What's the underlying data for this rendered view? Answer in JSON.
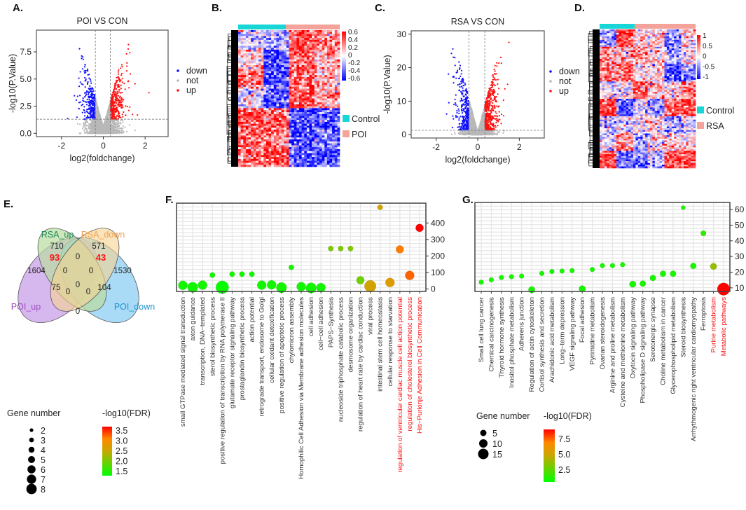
{
  "panels": {
    "A": "A.",
    "B": "B.",
    "C": "C.",
    "D": "D.",
    "E": "E.",
    "F": "F.",
    "G": "G."
  },
  "colors": {
    "down": "#1010ff",
    "not": "#b8b8b8",
    "up": "#ff1010",
    "control": "#18d6d6",
    "case": "#f4a39b",
    "heat_high": "#ff0000",
    "heat_low": "#0000ff",
    "fdr_low": "#00ff00",
    "fdr_high": "#ff0000"
  },
  "chart_data": [
    {
      "id": "A",
      "type": "scatter",
      "title": "POI  VS CON",
      "xlabel": "log2(foldchange)",
      "ylabel": "-log10(P.Value)",
      "xlim": [
        -3.2,
        3.1
      ],
      "ylim": [
        -0.3,
        9.5
      ],
      "xticks": [
        "-2",
        "0",
        "2"
      ],
      "xtick_values": [
        -2,
        0,
        2
      ],
      "yticks": [
        "0.0",
        "2.5",
        "5.0",
        "7.5"
      ],
      "ytick_values": [
        0,
        2.5,
        5,
        7.5
      ],
      "fc_threshold": [
        -0.38,
        0.34
      ],
      "p_threshold": 1.3,
      "legend": [
        "down",
        "not",
        "up"
      ],
      "legend_position": "right",
      "ymax_point": 8.6
    },
    {
      "id": "B",
      "type": "heatmap",
      "groups": [
        "Control",
        "POI"
      ],
      "scale_ticks": [
        "0.6",
        "0.4",
        "0.2",
        "0",
        "-0.2",
        "-0.4",
        "-0.6"
      ],
      "scale_range": [
        -0.6,
        0.6
      ]
    },
    {
      "id": "C",
      "type": "scatter",
      "title": "RSA  VS CON",
      "xlabel": "log2(foldchange)",
      "ylabel": "-log10(P.Value)",
      "xlim": [
        -3.2,
        3.2
      ],
      "ylim": [
        -1,
        31
      ],
      "xticks": [
        "-2",
        "0",
        "2"
      ],
      "xtick_values": [
        -2,
        0,
        2
      ],
      "yticks": [
        "0",
        "10",
        "20",
        "30"
      ],
      "ytick_values": [
        0,
        10,
        20,
        30
      ],
      "fc_threshold": [
        -0.42,
        0.34
      ],
      "p_threshold": 1.3,
      "legend": [
        "down",
        "not",
        "up"
      ],
      "legend_position": "right",
      "ymax_point": 29
    },
    {
      "id": "D",
      "type": "heatmap",
      "groups": [
        "Control",
        "RSA"
      ],
      "scale_ticks": [
        "1",
        "0.5",
        "0",
        "-0.5",
        "-1"
      ],
      "scale_range": [
        -1,
        1
      ]
    },
    {
      "id": "E",
      "type": "venn",
      "sets": [
        "RSA_up",
        "RSA_down",
        "POI_up",
        "POI_down"
      ],
      "regions": [
        {
          "label": "RSA_up only",
          "value": "710"
        },
        {
          "label": "RSA_down only",
          "value": "571"
        },
        {
          "label": "RSA_up∩POI_up",
          "value": "93",
          "highlight": true
        },
        {
          "label": "RSA_up∩RSA_down",
          "value": "0"
        },
        {
          "label": "RSA_down∩POI_down",
          "value": "43",
          "highlight": true
        },
        {
          "label": "POI_up only",
          "value": "1604"
        },
        {
          "label": "RSA_up∩RSA_down∩POI_up",
          "value": "0"
        },
        {
          "label": "RSA_up∩RSA_down∩POI_down",
          "value": "0"
        },
        {
          "label": "POI_down only",
          "value": "1530"
        },
        {
          "label": "all four",
          "value": "0"
        },
        {
          "label": "POI_up∩RSA_down",
          "value": "75"
        },
        {
          "label": "POI_up∩RSA_down∩POI_down",
          "value": "0"
        },
        {
          "label": "RSA_up∩POI_up∩POI_down",
          "value": "0"
        },
        {
          "label": "RSA_up∩POI_down",
          "value": "104"
        },
        {
          "label": "POI_up∩POI_down",
          "value": "0"
        }
      ]
    },
    {
      "id": "F",
      "type": "scatter",
      "subtype": "bubble",
      "ylim": [
        -15,
        520
      ],
      "yticks": [
        "0",
        "100",
        "200",
        "300",
        "400"
      ],
      "ytick_values": [
        0,
        100,
        200,
        300,
        400
      ],
      "size_legend_title": "Gene number",
      "size_legend": [
        "2",
        "3",
        "4",
        "5",
        "6",
        "7",
        "8"
      ],
      "color_legend_title": "-log10(FDR)",
      "color_legend": [
        "3.5",
        "3.0",
        "2.5",
        "2.0",
        "1.5"
      ],
      "color_range": [
        1.4,
        3.6
      ],
      "points": [
        {
          "term": "small GTPase mediated signal transduction",
          "y": 22,
          "genes": 5,
          "fdr": 1.5
        },
        {
          "term": "axon guidance",
          "y": 10,
          "genes": 6,
          "fdr": 1.5
        },
        {
          "term": "transcription, DNA−templated",
          "y": 23,
          "genes": 5,
          "fdr": 1.5
        },
        {
          "term": "sterol biosynthetic process",
          "y": 84,
          "genes": 2,
          "fdr": 1.5
        },
        {
          "term": "positive regulation of transcription by RNA polymerase II",
          "y": 10,
          "genes": 8,
          "fdr": 1.45
        },
        {
          "term": "glutamate receptor signaling pathway",
          "y": 90,
          "genes": 2,
          "fdr": 1.5
        },
        {
          "term": "prostaglandin biosynthetic process",
          "y": 90,
          "genes": 2,
          "fdr": 1.5
        },
        {
          "term": "action potential",
          "y": 90,
          "genes": 2,
          "fdr": 1.5
        },
        {
          "term": "retrograde transport, endosome to Golgi",
          "y": 23,
          "genes": 5,
          "fdr": 1.5
        },
        {
          "term": "cellular oxidant detoxification",
          "y": 25,
          "genes": 5,
          "fdr": 1.5
        },
        {
          "term": "positive regulation of apoptotic process",
          "y": 8,
          "genes": 6,
          "fdr": 1.5
        },
        {
          "term": "chylomicron assembly",
          "y": 131,
          "genes": 2,
          "fdr": 1.55
        },
        {
          "term": "Homophilic Cell Adhesion via Membrane adhesion molecules",
          "y": 14,
          "genes": 5,
          "fdr": 1.5
        },
        {
          "term": "cell adhesion",
          "y": 6,
          "genes": 6,
          "fdr": 1.5
        },
        {
          "term": "cell−cell adhesion",
          "y": 8,
          "genes": 5,
          "fdr": 1.5
        },
        {
          "term": "PAPS−Synthesis",
          "y": 245,
          "genes": 2,
          "fdr": 2.1
        },
        {
          "term": "nucleoside triphosphate catabolic process",
          "y": 245,
          "genes": 2,
          "fdr": 2.1
        },
        {
          "term": "desmosome organization",
          "y": 245,
          "genes": 2,
          "fdr": 2.1
        },
        {
          "term": "regulation of heart rate by cardiac conduction",
          "y": 53,
          "genes": 4,
          "fdr": 2.0
        },
        {
          "term": "viral process",
          "y": 17,
          "genes": 7,
          "fdr": 2.6
        },
        {
          "term": "intestinal stem cell homeostasis",
          "y": 495,
          "genes": 2,
          "fdr": 2.6
        },
        {
          "term": "cellular response to starvation",
          "y": 39,
          "genes": 5,
          "fdr": 2.7
        },
        {
          "term": "regulation of ventricular cardiac muscle cell action potential",
          "y": 240,
          "genes": 4,
          "fdr": 3.1,
          "highlight": true
        },
        {
          "term": "regulation of cholesterol biosynthetic process",
          "y": 82,
          "genes": 5,
          "fdr": 3.2,
          "highlight": true
        },
        {
          "term": "His−Purkinje Adhesion in Cell Communication",
          "y": 370,
          "genes": 4,
          "fdr": 3.6,
          "highlight": true
        }
      ]
    },
    {
      "id": "G",
      "type": "scatter",
      "subtype": "bubble",
      "ylim": [
        7.7,
        64.5
      ],
      "yticks": [
        "10",
        "20",
        "30",
        "40",
        "50",
        "60"
      ],
      "ytick_values": [
        10,
        20,
        30,
        40,
        50,
        60
      ],
      "size_legend_title": "Gene number",
      "size_legend": [
        "5",
        "10",
        "15"
      ],
      "color_legend_title": "-log10(FDR)",
      "color_legend": [
        "7.5",
        "5.0",
        "2.5"
      ],
      "color_range": [
        1,
        9.5
      ],
      "points": [
        {
          "term": "Small cell lung cancer",
          "y": 13.6,
          "genes": 3,
          "fdr": 1.5
        },
        {
          "term": "Chemical carcinogenesis",
          "y": 15.1,
          "genes": 3,
          "fdr": 1.5
        },
        {
          "term": "Thyroid hormone synthesis",
          "y": 16.6,
          "genes": 3,
          "fdr": 1.5
        },
        {
          "term": "Inositol phosphate metabolism",
          "y": 17.1,
          "genes": 3,
          "fdr": 1.5
        },
        {
          "term": "Adherens junction",
          "y": 17.5,
          "genes": 3,
          "fdr": 1.5
        },
        {
          "term": "Regulation of actin cytoskeleton",
          "y": 8.8,
          "genes": 6,
          "fdr": 1.5
        },
        {
          "term": "Cortisol synthesis and secretion",
          "y": 19.2,
          "genes": 3,
          "fdr": 1.5
        },
        {
          "term": "Arachidonic acid metabolism",
          "y": 20.4,
          "genes": 3,
          "fdr": 1.5
        },
        {
          "term": "Long−term depression",
          "y": 20.7,
          "genes": 3,
          "fdr": 1.5
        },
        {
          "term": "VEGF signaling pathway",
          "y": 21,
          "genes": 3,
          "fdr": 1.5
        },
        {
          "term": "Focal adhesion",
          "y": 9.4,
          "genes": 6,
          "fdr": 1.5
        },
        {
          "term": "Pyrimidine metabolism",
          "y": 21.7,
          "genes": 3,
          "fdr": 1.5
        },
        {
          "term": "Ovarian steroidogenesis",
          "y": 24.2,
          "genes": 3,
          "fdr": 1.5
        },
        {
          "term": "Arginine and proline metabolism",
          "y": 24.2,
          "genes": 3,
          "fdr": 1.5
        },
        {
          "term": "Cysteine and methionine metabolism",
          "y": 24.8,
          "genes": 3,
          "fdr": 1.5
        },
        {
          "term": "Oxytocin signaling pathway",
          "y": 12.3,
          "genes": 6,
          "fdr": 1.5
        },
        {
          "term": "Phospholipase D signaling pathway",
          "y": 12.7,
          "genes": 5,
          "fdr": 1.5
        },
        {
          "term": "Serotonergic synapse",
          "y": 16.3,
          "genes": 5,
          "fdr": 1.5
        },
        {
          "term": "Choline metabolism in cancer",
          "y": 19,
          "genes": 5,
          "fdr": 1.5
        },
        {
          "term": "Glycerophospholipid metabolism",
          "y": 19,
          "genes": 5,
          "fdr": 1.5
        },
        {
          "term": "Steroid biosynthesis",
          "y": 61.2,
          "genes": 2,
          "fdr": 1.6
        },
        {
          "term": "Arrhythmogenic right ventricular cardiomyopathy",
          "y": 24,
          "genes": 5,
          "fdr": 1.5
        },
        {
          "term": "Ferroptosis",
          "y": 44.8,
          "genes": 4,
          "fdr": 2.0
        },
        {
          "term": "Purine metabolism",
          "y": 23.7,
          "genes": 6,
          "fdr": 4.2,
          "highlight": true
        },
        {
          "term": "Metabolic pathways",
          "y": 9.2,
          "genes": 16,
          "fdr": 9.5,
          "highlight": true
        }
      ]
    }
  ]
}
